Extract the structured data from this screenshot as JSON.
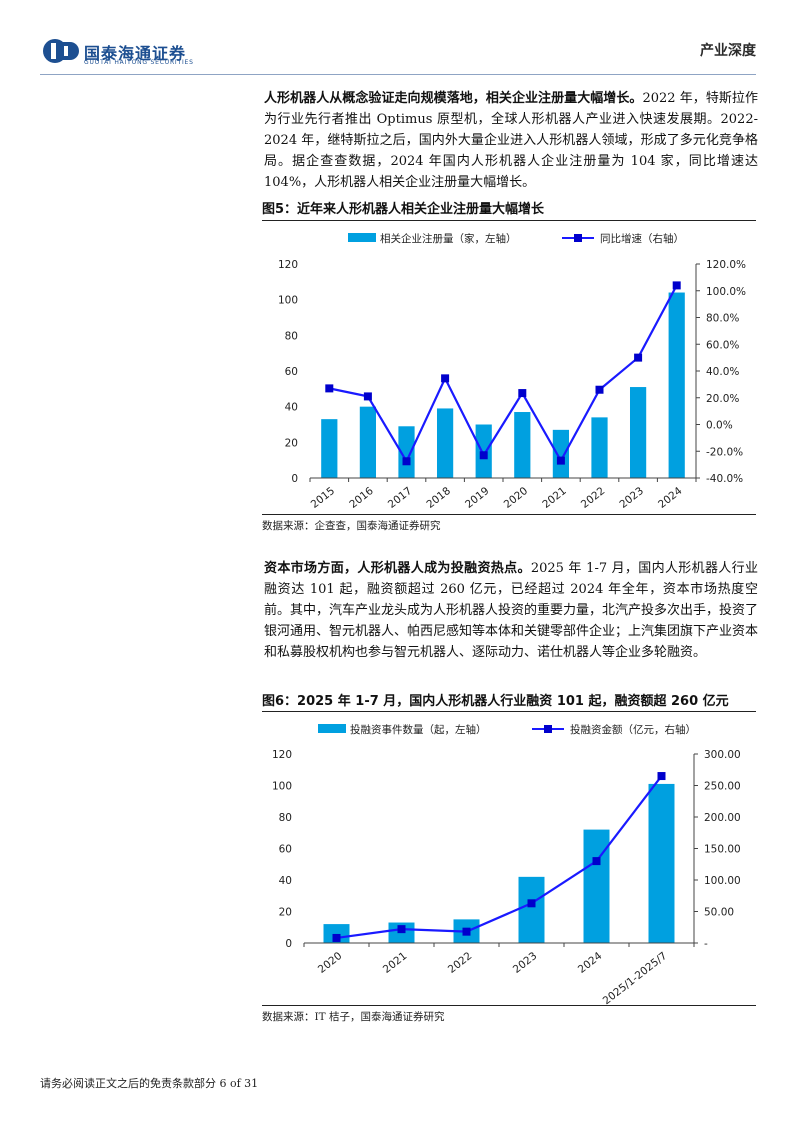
{
  "header": {
    "brand_cn": "国泰海通证券",
    "brand_en": "GUOTAI HAITONG SECURITIES",
    "report_type": "产业深度",
    "brand_color": "#1d4f91"
  },
  "para1": {
    "lead": "人形机器人从概念验证走向规模落地，相关企业注册量大幅增长。",
    "body": "2022 年，特斯拉作为行业先行者推出 Optimus 原型机，全球人形机器人产业进入快速发展期。2022-2024 年，继特斯拉之后，国内外大量企业进入人形机器人领域，形成了多元化竞争格局。据企查查数据，2024 年国内人形机器人企业注册量为 104 家，同比增速达 104%，人形机器人相关企业注册量大幅增长。"
  },
  "figure5": {
    "title": "图5：近年来人形机器人相关企业注册量大幅增长",
    "source": "数据来源：企查查，国泰海通证券研究"
  },
  "para2": {
    "lead": "资本市场方面，人形机器人成为投融资热点。",
    "body": "2025 年 1-7 月，国内人形机器人行业融资达 101 起，融资额超过 260 亿元，已经超过 2024 年全年，资本市场热度空前。其中，汽车产业龙头成为人形机器人投资的重要力量，北汽产投多次出手，投资了银河通用、智元机器人、帕西尼感知等本体和关键零部件企业；上汽集团旗下产业资本和私募股权机构也参与智元机器人、逐际动力、诺仕机器人等企业多轮融资。"
  },
  "figure6": {
    "title": "图6：2025 年 1-7 月，国内人形机器人行业融资 101 起，融资额超 260 亿元",
    "source": "数据来源：IT 桔子，国泰海通证券研究"
  },
  "footer": {
    "disclaimer": "请务必阅读正文之后的免责条款部分 6 of 31"
  },
  "colors": {
    "bar": "#00a0e0",
    "line": "#1a1aff",
    "marker": "#0000cc"
  },
  "chart_data": [
    {
      "type": "bar+line",
      "categories": [
        "2015",
        "2016",
        "2017",
        "2018",
        "2019",
        "2020",
        "2021",
        "2022",
        "2023",
        "2024"
      ],
      "series": [
        {
          "name": "相关企业注册量（家，左轴）",
          "type": "bar",
          "axis": "left",
          "values": [
            33,
            40,
            29,
            39,
            30,
            37,
            27,
            34,
            51,
            104
          ]
        },
        {
          "name": "同比增速（右轴）",
          "type": "line",
          "axis": "right",
          "values": [
            27.0,
            21.0,
            -27.5,
            34.5,
            -23.0,
            23.5,
            -27.0,
            26.0,
            50.0,
            104.0
          ]
        }
      ],
      "ylim_left": [
        0,
        120
      ],
      "yticks_left": [
        "0",
        "20",
        "40",
        "60",
        "80",
        "100",
        "120"
      ],
      "ylim_right": [
        -40,
        120
      ],
      "yticks_right": [
        "-40.0%",
        "-20.0%",
        "0.0%",
        "20.0%",
        "40.0%",
        "60.0%",
        "80.0%",
        "100.0%",
        "120.0%"
      ],
      "legend": "top"
    },
    {
      "type": "bar+line",
      "categories": [
        "2020",
        "2021",
        "2022",
        "2023",
        "2024",
        "2025/1-2025/7"
      ],
      "series": [
        {
          "name": "投融资事件数量（起，左轴）",
          "type": "bar",
          "axis": "left",
          "values": [
            12,
            13,
            15,
            42,
            72,
            101
          ]
        },
        {
          "name": "投融资金额（亿元，右轴）",
          "type": "line",
          "axis": "right",
          "values": [
            8,
            22,
            18,
            63,
            130,
            265
          ]
        }
      ],
      "ylim_left": [
        0,
        120
      ],
      "yticks_left": [
        "0",
        "20",
        "40",
        "60",
        "80",
        "100",
        "120"
      ],
      "ylim_right": [
        0,
        300
      ],
      "yticks_right": [
        "-",
        "50.00",
        "100.00",
        "150.00",
        "200.00",
        "250.00",
        "300.00"
      ],
      "legend": "top"
    }
  ]
}
